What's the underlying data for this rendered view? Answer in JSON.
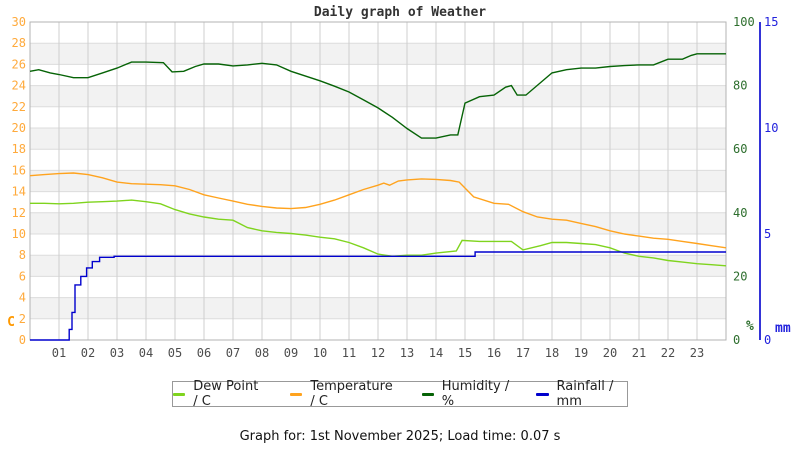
{
  "title": "Daily graph of Weather",
  "footer": "Graph for: 1st November 2025; Load time: 0.07 s",
  "axes": {
    "left": {
      "unit": "C",
      "labels": [
        "0",
        "2",
        "4",
        "6",
        "8",
        "10",
        "12",
        "14",
        "16",
        "18",
        "20",
        "22",
        "24",
        "26",
        "28",
        "30"
      ],
      "label_color": "#ffaa3c",
      "unit_color": "#ff9900"
    },
    "humidity": {
      "unit": "%",
      "labels": [
        "0",
        "20",
        "40",
        "60",
        "80",
        "100"
      ],
      "label_color": "#2d6e2d"
    },
    "rain": {
      "unit": "mm",
      "labels": [
        "0",
        "5",
        "10",
        "15"
      ],
      "label_color": "#2222dd",
      "axis_color": "#0000cd"
    }
  },
  "x_axis": {
    "labels": [
      "01",
      "02",
      "03",
      "04",
      "05",
      "06",
      "07",
      "08",
      "09",
      "10",
      "11",
      "12",
      "13",
      "14",
      "15",
      "16",
      "17",
      "18",
      "19",
      "20",
      "21",
      "22",
      "23"
    ],
    "label_color": "#4d4d4d"
  },
  "chart_data": {
    "type": "line",
    "title": "Daily graph of Weather",
    "grid": true,
    "legend_position": "bottom",
    "x_range_hours": [
      0,
      24
    ],
    "axes": {
      "left": {
        "title": "C",
        "range": [
          0,
          30
        ],
        "tick_step": 2
      },
      "humidity": {
        "title": "%",
        "range": [
          0,
          100
        ],
        "tick_step": 20
      },
      "rain": {
        "title": "mm",
        "range": [
          0,
          15
        ],
        "tick_step": 5
      }
    },
    "series": [
      {
        "name": "Dew Point / C",
        "axis": "left",
        "color": "#7fd41e",
        "interp": "linear",
        "points": [
          [
            0,
            12.9
          ],
          [
            0.5,
            12.9
          ],
          [
            1,
            12.85
          ],
          [
            1.5,
            12.9
          ],
          [
            2,
            13.0
          ],
          [
            2.5,
            13.05
          ],
          [
            3,
            13.1
          ],
          [
            3.5,
            13.2
          ],
          [
            4,
            13.05
          ],
          [
            4.5,
            12.85
          ],
          [
            5,
            12.3
          ],
          [
            5.5,
            11.9
          ],
          [
            6,
            11.6
          ],
          [
            6.5,
            11.4
          ],
          [
            7,
            11.3
          ],
          [
            7.5,
            10.6
          ],
          [
            8,
            10.3
          ],
          [
            8.5,
            10.15
          ],
          [
            9,
            10.05
          ],
          [
            9.5,
            9.9
          ],
          [
            10,
            9.7
          ],
          [
            10.5,
            9.55
          ],
          [
            11,
            9.2
          ],
          [
            11.5,
            8.7
          ],
          [
            12,
            8.1
          ],
          [
            12.5,
            7.9
          ],
          [
            13,
            8.0
          ],
          [
            13.5,
            8.0
          ],
          [
            14,
            8.2
          ],
          [
            14.7,
            8.4
          ],
          [
            14.9,
            9.4
          ],
          [
            15.5,
            9.3
          ],
          [
            16,
            9.3
          ],
          [
            16.6,
            9.3
          ],
          [
            17,
            8.5
          ],
          [
            17.6,
            8.9
          ],
          [
            18,
            9.2
          ],
          [
            18.5,
            9.2
          ],
          [
            19,
            9.1
          ],
          [
            19.5,
            9.0
          ],
          [
            20,
            8.7
          ],
          [
            20.5,
            8.2
          ],
          [
            21,
            7.9
          ],
          [
            21.5,
            7.75
          ],
          [
            22,
            7.5
          ],
          [
            22.5,
            7.35
          ],
          [
            23,
            7.2
          ],
          [
            23.5,
            7.1
          ],
          [
            24,
            7.0
          ]
        ]
      },
      {
        "name": "Temperature / C",
        "axis": "left",
        "color": "#ffa31e",
        "interp": "linear",
        "points": [
          [
            0,
            15.5
          ],
          [
            0.5,
            15.6
          ],
          [
            1,
            15.7
          ],
          [
            1.5,
            15.75
          ],
          [
            2,
            15.6
          ],
          [
            2.5,
            15.3
          ],
          [
            3,
            14.9
          ],
          [
            3.5,
            14.75
          ],
          [
            4,
            14.7
          ],
          [
            4.5,
            14.65
          ],
          [
            5,
            14.55
          ],
          [
            5.5,
            14.2
          ],
          [
            6,
            13.7
          ],
          [
            6.5,
            13.4
          ],
          [
            7,
            13.1
          ],
          [
            7.5,
            12.8
          ],
          [
            8,
            12.6
          ],
          [
            8.5,
            12.45
          ],
          [
            9,
            12.4
          ],
          [
            9.5,
            12.5
          ],
          [
            10,
            12.8
          ],
          [
            10.5,
            13.2
          ],
          [
            11,
            13.7
          ],
          [
            11.5,
            14.2
          ],
          [
            12,
            14.6
          ],
          [
            12.2,
            14.8
          ],
          [
            12.4,
            14.6
          ],
          [
            12.7,
            15.0
          ],
          [
            13,
            15.1
          ],
          [
            13.5,
            15.2
          ],
          [
            14,
            15.15
          ],
          [
            14.5,
            15.05
          ],
          [
            14.8,
            14.9
          ],
          [
            15.3,
            13.5
          ],
          [
            16,
            12.9
          ],
          [
            16.5,
            12.8
          ],
          [
            17,
            12.1
          ],
          [
            17.5,
            11.6
          ],
          [
            18,
            11.4
          ],
          [
            18.5,
            11.3
          ],
          [
            19,
            11.0
          ],
          [
            19.5,
            10.7
          ],
          [
            20,
            10.3
          ],
          [
            20.5,
            10.0
          ],
          [
            21,
            9.8
          ],
          [
            21.5,
            9.6
          ],
          [
            22,
            9.5
          ],
          [
            22.5,
            9.3
          ],
          [
            23,
            9.1
          ],
          [
            23.5,
            8.9
          ],
          [
            24,
            8.7
          ]
        ]
      },
      {
        "name": "Humidity / %",
        "axis": "humidity",
        "color": "#066306",
        "interp": "linear",
        "points": [
          [
            0,
            84.5
          ],
          [
            0.3,
            85
          ],
          [
            0.7,
            84
          ],
          [
            1,
            83.5
          ],
          [
            1.5,
            82.5
          ],
          [
            2,
            82.5
          ],
          [
            2.5,
            84
          ],
          [
            3,
            85.5
          ],
          [
            3.5,
            87.4
          ],
          [
            4,
            87.4
          ],
          [
            4.6,
            87.2
          ],
          [
            4.9,
            84.3
          ],
          [
            5.3,
            84.5
          ],
          [
            5.7,
            86
          ],
          [
            6,
            86.8
          ],
          [
            6.5,
            86.8
          ],
          [
            7,
            86.2
          ],
          [
            7.5,
            86.5
          ],
          [
            8,
            87
          ],
          [
            8.5,
            86.5
          ],
          [
            9,
            84.5
          ],
          [
            9.5,
            83
          ],
          [
            10,
            81.5
          ],
          [
            10.5,
            79.8
          ],
          [
            11,
            78
          ],
          [
            11.5,
            75.5
          ],
          [
            12,
            73
          ],
          [
            12.5,
            70
          ],
          [
            13,
            66.5
          ],
          [
            13.5,
            63.5
          ],
          [
            14,
            63.5
          ],
          [
            14.5,
            64.5
          ],
          [
            14.75,
            64.5
          ],
          [
            15,
            74.5
          ],
          [
            15.5,
            76.5
          ],
          [
            16,
            77
          ],
          [
            16.4,
            79.5
          ],
          [
            16.6,
            80
          ],
          [
            16.8,
            77
          ],
          [
            17.1,
            77
          ],
          [
            18,
            84
          ],
          [
            18.5,
            85
          ],
          [
            19,
            85.5
          ],
          [
            19.5,
            85.5
          ],
          [
            20,
            86
          ],
          [
            20.5,
            86.3
          ],
          [
            21,
            86.5
          ],
          [
            21.5,
            86.5
          ],
          [
            22,
            88.3
          ],
          [
            22.5,
            88.3
          ],
          [
            22.8,
            89.5
          ],
          [
            23,
            90
          ],
          [
            23.5,
            90
          ],
          [
            24,
            90
          ]
        ]
      },
      {
        "name": "Rainfall / mm",
        "axis": "rain",
        "color": "#0000cd",
        "interp": "step",
        "points": [
          [
            0,
            0
          ],
          [
            1.25,
            0
          ],
          [
            1.35,
            0.5
          ],
          [
            1.45,
            1.3
          ],
          [
            1.55,
            2.6
          ],
          [
            1.75,
            3.0
          ],
          [
            1.95,
            3.4
          ],
          [
            2.15,
            3.7
          ],
          [
            2.4,
            3.9
          ],
          [
            2.9,
            3.95
          ],
          [
            15.3,
            3.95
          ],
          [
            15.35,
            4.15
          ],
          [
            24,
            4.15
          ]
        ]
      }
    ]
  }
}
